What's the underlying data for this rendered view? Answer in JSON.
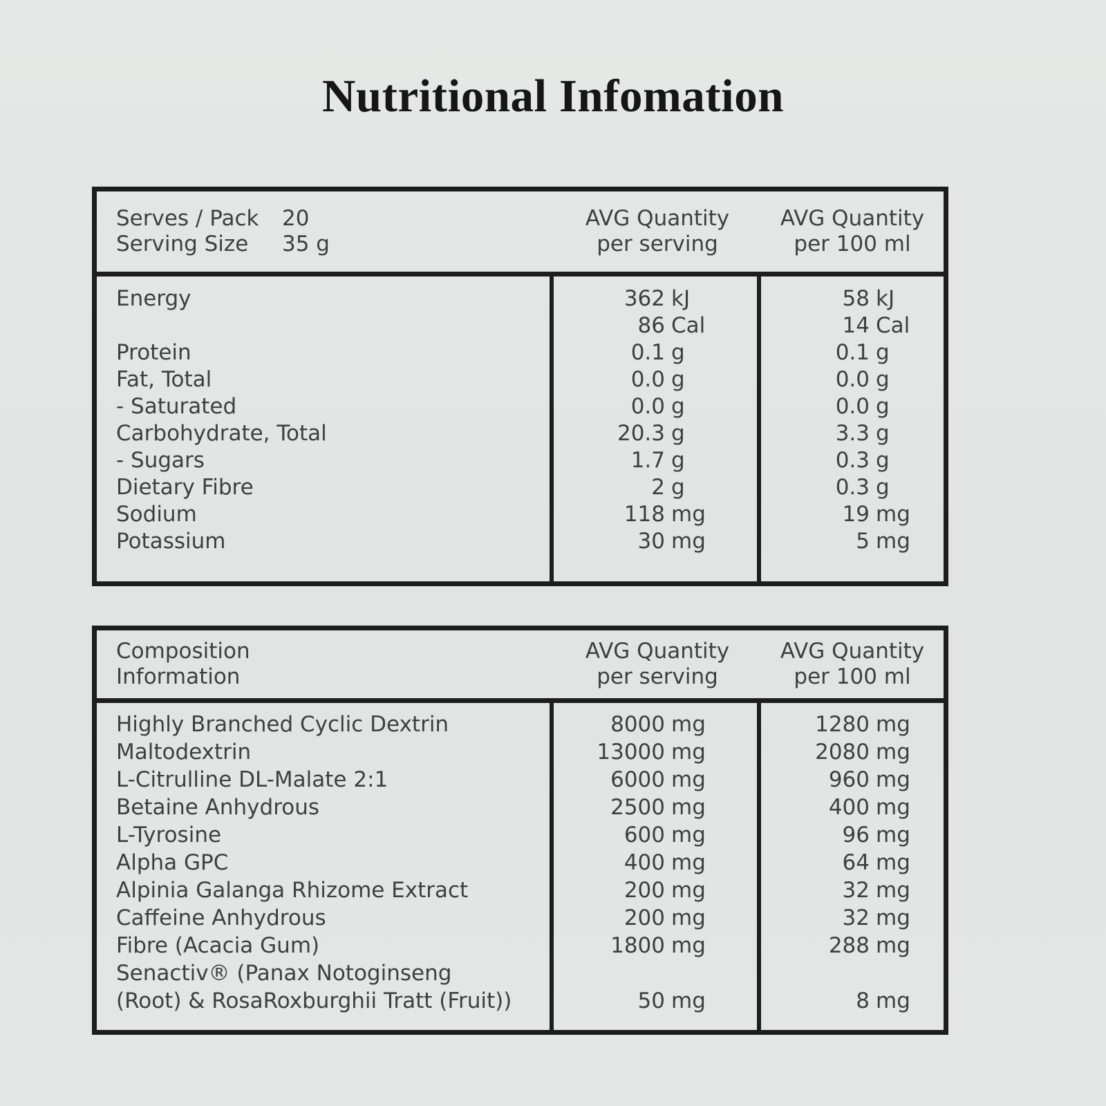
{
  "title": "Nutritional Infomation",
  "colors": {
    "background": "#e1e4e3",
    "border": "#1d1d1d",
    "text": "#3e403f",
    "title_text": "#161616"
  },
  "table1": {
    "header": {
      "left": [
        {
          "label": "Serves / Pack",
          "value": "20"
        },
        {
          "label": "Serving Size",
          "value": "35 g"
        }
      ],
      "col2": {
        "line1": "AVG Quantity",
        "line2": "per serving"
      },
      "col3": {
        "line1": "AVG Quantity",
        "line2": "per 100 ml"
      }
    },
    "rows": [
      {
        "label": "Energy",
        "serving": {
          "num": "362",
          "unit": "kJ"
        },
        "per100": {
          "num": "58",
          "unit": "kJ"
        }
      },
      {
        "label": "",
        "serving": {
          "num": "86",
          "unit": "Cal"
        },
        "per100": {
          "num": "14",
          "unit": "Cal"
        }
      },
      {
        "label": "Protein",
        "serving": {
          "num": "0.1",
          "unit": "g"
        },
        "per100": {
          "num": "0.1",
          "unit": "g"
        }
      },
      {
        "label": "Fat, Total",
        "serving": {
          "num": "0.0",
          "unit": "g"
        },
        "per100": {
          "num": "0.0",
          "unit": "g"
        }
      },
      {
        "label": "- Saturated",
        "serving": {
          "num": "0.0",
          "unit": "g"
        },
        "per100": {
          "num": "0.0",
          "unit": "g"
        }
      },
      {
        "label": "Carbohydrate, Total",
        "serving": {
          "num": "20.3",
          "unit": "g"
        },
        "per100": {
          "num": "3.3",
          "unit": "g"
        }
      },
      {
        "label": "- Sugars",
        "serving": {
          "num": "1.7",
          "unit": "g"
        },
        "per100": {
          "num": "0.3",
          "unit": "g"
        }
      },
      {
        "label": "Dietary Fibre",
        "serving": {
          "num": "2",
          "unit": "g"
        },
        "per100": {
          "num": "0.3",
          "unit": "g"
        }
      },
      {
        "label": "Sodium",
        "serving": {
          "num": "118",
          "unit": "mg"
        },
        "per100": {
          "num": "19",
          "unit": "mg"
        }
      },
      {
        "label": "Potassium",
        "serving": {
          "num": "30",
          "unit": "mg"
        },
        "per100": {
          "num": "5",
          "unit": "mg"
        }
      }
    ]
  },
  "table2": {
    "header": {
      "left": [
        {
          "label": "Composition",
          "value": ""
        },
        {
          "label": "Information",
          "value": ""
        }
      ],
      "col2": {
        "line1": "AVG Quantity",
        "line2": "per serving"
      },
      "col3": {
        "line1": "AVG Quantity",
        "line2": "per 100 ml"
      }
    },
    "rows": [
      {
        "label": "Highly Branched Cyclic Dextrin",
        "serving": {
          "num": "8000",
          "unit": "mg"
        },
        "per100": {
          "num": "1280",
          "unit": "mg"
        }
      },
      {
        "label": "Maltodextrin",
        "serving": {
          "num": "13000",
          "unit": "mg"
        },
        "per100": {
          "num": "2080",
          "unit": "mg"
        }
      },
      {
        "label": "L-Citrulline DL-Malate 2:1",
        "serving": {
          "num": "6000",
          "unit": "mg"
        },
        "per100": {
          "num": "960",
          "unit": "mg"
        }
      },
      {
        "label": "Betaine Anhydrous",
        "serving": {
          "num": "2500",
          "unit": "mg"
        },
        "per100": {
          "num": "400",
          "unit": "mg"
        }
      },
      {
        "label": "L-Tyrosine",
        "serving": {
          "num": "600",
          "unit": "mg"
        },
        "per100": {
          "num": "96",
          "unit": "mg"
        }
      },
      {
        "label": "Alpha GPC",
        "serving": {
          "num": "400",
          "unit": "mg"
        },
        "per100": {
          "num": "64",
          "unit": "mg"
        }
      },
      {
        "label": "Alpinia Galanga Rhizome Extract",
        "serving": {
          "num": "200",
          "unit": "mg"
        },
        "per100": {
          "num": "32",
          "unit": "mg"
        }
      },
      {
        "label": "Caffeine Anhydrous",
        "serving": {
          "num": "200",
          "unit": "mg"
        },
        "per100": {
          "num": "32",
          "unit": "mg"
        }
      },
      {
        "label": "Fibre (Acacia Gum)",
        "serving": {
          "num": "1800",
          "unit": "mg"
        },
        "per100": {
          "num": "288",
          "unit": "mg"
        }
      },
      {
        "label": "Senactiv® (Panax Notoginseng",
        "serving": {
          "num": "",
          "unit": ""
        },
        "per100": {
          "num": "",
          "unit": ""
        }
      },
      {
        "label": "(Root) & RosaRoxburghii Tratt (Fruit))",
        "serving": {
          "num": "50",
          "unit": "mg"
        },
        "per100": {
          "num": "8",
          "unit": "mg"
        }
      }
    ]
  }
}
